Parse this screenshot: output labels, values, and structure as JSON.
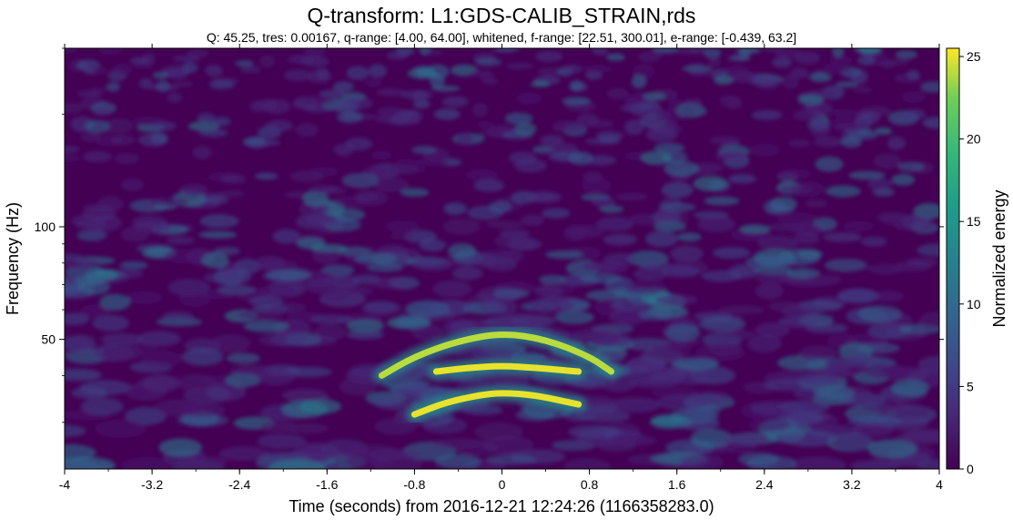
{
  "chart_data": {
    "type": "heatmap",
    "title": "Q-transform: L1:GDS-CALIB_STRAIN,rds",
    "subtitle": "Q: 45.25, tres: 0.00167, q-range: [4.00, 64.00], whitened, f-range: [22.51, 300.01], e-range: [-0.439, 63.2]",
    "xlabel": "Time (seconds) from 2016-12-21 12:24:26 (1166358283.0)",
    "ylabel": "Frequency (Hz)",
    "colorbar_label": "Normalized energy",
    "xlim": [
      -4,
      4
    ],
    "ylim": [
      22.51,
      300.01
    ],
    "y_scale": "log",
    "colormap": "viridis",
    "color_range": [
      0,
      25.5
    ],
    "x_ticks": [
      -4,
      -3.2,
      -2.4,
      -1.6,
      -0.8,
      0,
      0.8,
      1.6,
      2.4,
      3.2,
      4
    ],
    "x_tick_labels": [
      "-4",
      "-3.2",
      "-2.4",
      "-1.6",
      "-0.8",
      "0",
      "0.8",
      "1.6",
      "2.4",
      "3.2",
      "4"
    ],
    "y_ticks": [
      50,
      100
    ],
    "y_tick_labels": [
      "50",
      "100"
    ],
    "colorbar_ticks": [
      0,
      5,
      10,
      15,
      20,
      25
    ],
    "colorbar_tick_labels": [
      "0",
      "5",
      "10",
      "15",
      "20",
      "25"
    ],
    "features": [
      {
        "t": [
          -1.1,
          -0.8,
          -0.4,
          0.0,
          0.4,
          0.8,
          1.0
        ],
        "f": [
          40.0,
          45.0,
          49.5,
          52.0,
          50.0,
          45.0,
          41.0
        ],
        "energy": 24
      },
      {
        "t": [
          -0.6,
          -0.3,
          0.0,
          0.3,
          0.7
        ],
        "f": [
          41.0,
          42.0,
          42.5,
          42.0,
          41.0
        ],
        "energy": 25
      },
      {
        "t": [
          -0.8,
          -0.5,
          -0.2,
          0.0,
          0.3,
          0.7
        ],
        "f": [
          31.5,
          34.0,
          35.5,
          36.0,
          35.5,
          33.5
        ],
        "energy": 25
      }
    ]
  }
}
